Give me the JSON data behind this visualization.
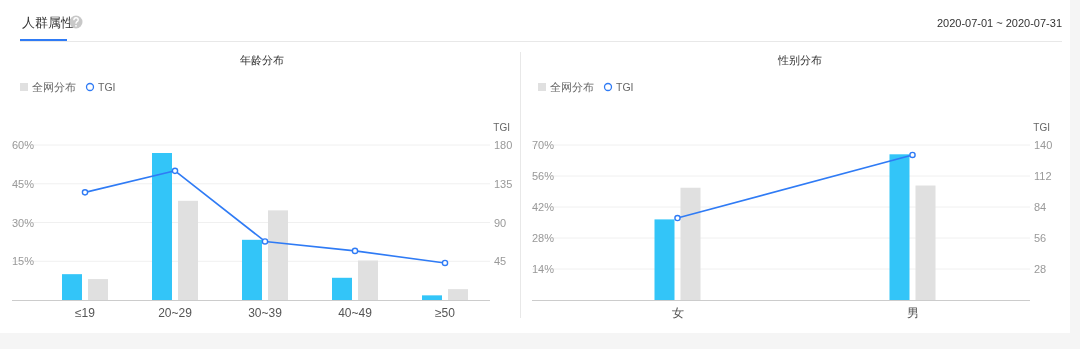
{
  "chart_data": [
    {
      "type": "other",
      "title": "人群属性",
      "annotations": [
        "2020-07-01 ~ 2020-07-31"
      ]
    },
    {
      "type": "bar",
      "title": "年龄分布",
      "categories": [
        "≤19",
        "20~29",
        "30~39",
        "40~49",
        "≥50"
      ],
      "series": [
        {
          "color": "#33c5f8",
          "values": [
            10.0,
            56.9,
            23.3,
            8.6,
            1.8
          ]
        },
        {
          "name": "全网分布",
          "color": "#e0e0e0",
          "values": [
            8.1,
            38.4,
            34.7,
            15.3,
            4.2
          ]
        },
        {
          "name": "TGI",
          "type": "line",
          "axis": "y2",
          "marker": "circle",
          "color": "#2f7bf5",
          "values": [
            125,
            150,
            68,
            57,
            43
          ]
        }
      ],
      "ylim": [
        0,
        60
      ],
      "yticks": [
        {
          "value": 15,
          "label": "15%"
        },
        {
          "value": 30,
          "label": "30%"
        },
        {
          "value": 45,
          "label": "45%"
        },
        {
          "value": 60,
          "label": "60%"
        }
      ],
      "y2label": "TGI",
      "y2lim": [
        0,
        180
      ],
      "y2ticks": [
        45,
        90,
        135,
        180
      ],
      "grid": "y",
      "legend": "top left"
    },
    {
      "type": "bar",
      "title": "性别分布",
      "categories": [
        "女",
        "男"
      ],
      "series": [
        {
          "color": "#33c5f8",
          "values": [
            36.4,
            65.8
          ]
        },
        {
          "name": "全网分布",
          "color": "#e0e0e0",
          "values": [
            50.7,
            51.7
          ]
        },
        {
          "name": "TGI",
          "type": "line",
          "axis": "y2",
          "marker": "circle",
          "color": "#2f7bf5",
          "values": [
            74,
            131
          ]
        }
      ],
      "ylim": [
        0,
        70
      ],
      "yticks": [
        {
          "value": 14,
          "label": "14%"
        },
        {
          "value": 28,
          "label": "28%"
        },
        {
          "value": 42,
          "label": "42%"
        },
        {
          "value": 56,
          "label": "56%"
        },
        {
          "value": 70,
          "label": "70%"
        }
      ],
      "y2label": "TGI",
      "y2lim": [
        0,
        140
      ],
      "y2ticks": [
        28,
        56,
        84,
        112,
        140
      ],
      "grid": "y",
      "legend": "top left"
    }
  ]
}
